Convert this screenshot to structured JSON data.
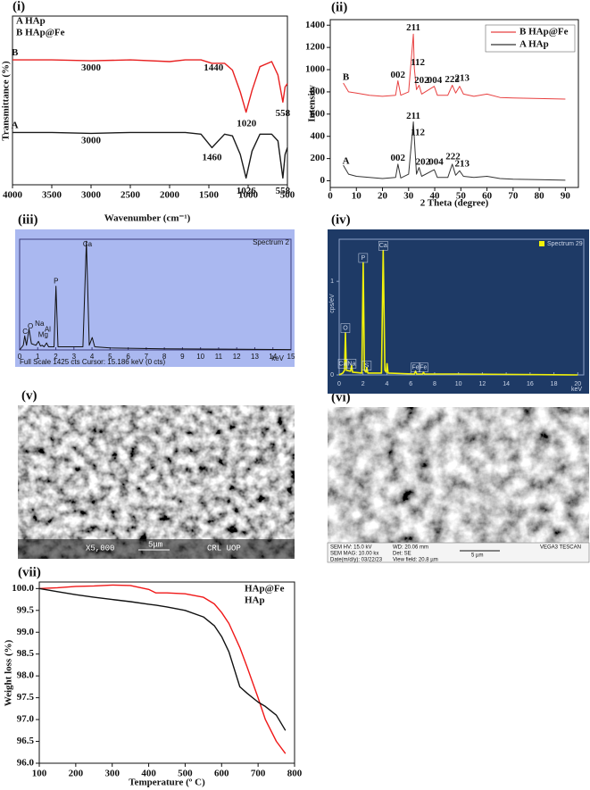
{
  "chart_data": [
    {
      "type": "line",
      "panel_label": "(i)",
      "xlabel": "Wavenumber (cm⁻¹)",
      "ylabel": "Transmittance (%)",
      "xlim": [
        4000,
        500
      ],
      "ylim": [
        0,
        100
      ],
      "xticks": [
        4000,
        3500,
        3000,
        2500,
        2000,
        1500,
        1000,
        500
      ],
      "legend": "upper left",
      "x": [
        4000,
        3500,
        3000,
        2500,
        2000,
        1800,
        1600,
        1460,
        1300,
        1200,
        1100,
        1026,
        950,
        850,
        700,
        620,
        558,
        530,
        500
      ],
      "series": [
        {
          "name": "A HAp",
          "color": "#1a1a1a",
          "values": [
            31,
            31,
            30.5,
            31,
            31,
            31,
            30,
            22,
            30,
            29,
            18,
            4,
            20,
            30,
            30,
            26,
            4,
            18,
            22
          ]
        },
        {
          "name": "B HAp@Fe",
          "color": "#e82020",
          "values": [
            74,
            74,
            73.5,
            74,
            73,
            74,
            74,
            72,
            72,
            68,
            55,
            43,
            56,
            70,
            73,
            65,
            49,
            58,
            60
          ]
        }
      ],
      "annotations": [
        {
          "text": "B",
          "x": 3970,
          "y": 78,
          "color": "#e82020"
        },
        {
          "text": "3000",
          "x": 3000,
          "y": 69
        },
        {
          "text": "1440",
          "x": 1440,
          "y": 69
        },
        {
          "text": "1020",
          "x": 1020,
          "y": 36
        },
        {
          "text": "558",
          "x": 558,
          "y": 42
        },
        {
          "text": "A",
          "x": 3970,
          "y": 35
        },
        {
          "text": "3000",
          "x": 3000,
          "y": 26
        },
        {
          "text": "1460",
          "x": 1460,
          "y": 16
        },
        {
          "text": "1026",
          "x": 1026,
          "y": -4
        },
        {
          "text": "558",
          "x": 558,
          "y": -4
        }
      ]
    },
    {
      "type": "line",
      "panel_label": "(ii)",
      "xlabel": "2 Theta (degree)",
      "ylabel": "Intensity",
      "xlim": [
        0,
        95
      ],
      "ylim": [
        -60,
        1450
      ],
      "xticks": [
        0,
        10,
        20,
        30,
        40,
        50,
        60,
        70,
        80,
        90
      ],
      "yticks": [
        0,
        200,
        400,
        600,
        800,
        1000,
        1200,
        1400
      ],
      "legend": "upper right",
      "x": [
        5,
        7,
        10,
        15,
        20,
        25,
        25.9,
        27,
        30,
        31.8,
        32.2,
        33,
        34,
        35,
        39.8,
        41,
        45,
        46.7,
        48,
        49.5,
        51,
        55,
        60,
        65,
        70,
        80,
        90
      ],
      "series": [
        {
          "name": "B HAp@Fe",
          "color": "#e84040",
          "values": [
            880,
            800,
            790,
            770,
            760,
            770,
            900,
            770,
            800,
            1320,
            1010,
            820,
            860,
            780,
            850,
            770,
            770,
            860,
            790,
            850,
            780,
            760,
            780,
            750,
            745,
            740,
            735
          ]
        },
        {
          "name": "A HAp",
          "color": "#333333",
          "values": [
            140,
            60,
            40,
            30,
            20,
            30,
            150,
            25,
            60,
            530,
            380,
            60,
            120,
            40,
            100,
            30,
            30,
            150,
            50,
            90,
            40,
            30,
            40,
            20,
            15,
            10,
            5
          ]
        }
      ],
      "annotations": [
        {
          "text": "B",
          "x": 6,
          "y": 930,
          "color": "#e84040"
        },
        {
          "text": "211",
          "x": 31.8,
          "y": 1375
        },
        {
          "text": "112",
          "x": 33.5,
          "y": 1060
        },
        {
          "text": "002",
          "x": 25.9,
          "y": 950
        },
        {
          "text": "202",
          "x": 35,
          "y": 900
        },
        {
          "text": "004",
          "x": 40,
          "y": 900
        },
        {
          "text": "222",
          "x": 46.7,
          "y": 910
        },
        {
          "text": "213",
          "x": 50.5,
          "y": 920
        },
        {
          "text": "A",
          "x": 6,
          "y": 175
        },
        {
          "text": "211",
          "x": 31.8,
          "y": 580
        },
        {
          "text": "112",
          "x": 33.5,
          "y": 430
        },
        {
          "text": "002",
          "x": 25.9,
          "y": 200
        },
        {
          "text": "202",
          "x": 35.5,
          "y": 165
        },
        {
          "text": "004",
          "x": 40.5,
          "y": 165
        },
        {
          "text": "222",
          "x": 47,
          "y": 215
        },
        {
          "text": "213",
          "x": 50.5,
          "y": 150
        }
      ]
    },
    {
      "type": "line",
      "panel_label": "(iii)",
      "xlim": [
        0,
        15
      ],
      "ylim": [
        0,
        1425
      ],
      "xticks": [
        0,
        1,
        2,
        3,
        4,
        5,
        6,
        7,
        8,
        9,
        10,
        11,
        12,
        13,
        14,
        15
      ],
      "x_unit": "keV",
      "footer": "Full Scale 1425 cts  Cursor: 15.186 keV (0 cts)",
      "legend": "upper right",
      "x": [
        0,
        0.2,
        0.28,
        0.38,
        0.52,
        0.65,
        0.9,
        1.04,
        1.15,
        1.25,
        1.35,
        1.49,
        1.6,
        1.9,
        2.01,
        2.12,
        3.5,
        3.69,
        3.85,
        4.01,
        4.15,
        5,
        8,
        15
      ],
      "series": [
        {
          "name": "Spectrum 2",
          "color": "#111111",
          "values": [
            0,
            60,
            180,
            60,
            270,
            80,
            60,
            110,
            50,
            60,
            40,
            90,
            40,
            40,
            820,
            40,
            40,
            1400,
            60,
            160,
            40,
            25,
            15,
            5
          ]
        }
      ],
      "annotations": [
        {
          "text": "C",
          "x": 0.3,
          "y": 230
        },
        {
          "text": "O",
          "x": 0.6,
          "y": 300
        },
        {
          "text": "Na",
          "x": 1.1,
          "y": 335
        },
        {
          "text": "Al",
          "x": 1.55,
          "y": 260
        },
        {
          "text": "Mg",
          "x": 1.3,
          "y": 190
        },
        {
          "text": "P",
          "x": 2.01,
          "y": 880
        },
        {
          "text": "Ca",
          "x": 3.75,
          "y": 1360
        }
      ]
    },
    {
      "type": "line",
      "panel_label": "(iv)",
      "xlim": [
        0,
        20.5
      ],
      "ylim": [
        0,
        1.45
      ],
      "ylabel": "cps/eV",
      "xticks": [
        0,
        2,
        4,
        6,
        8,
        10,
        12,
        14,
        16,
        18,
        20
      ],
      "yticks": [
        0,
        1
      ],
      "x_unit": "keV",
      "legend": "upper right",
      "x": [
        0,
        0.3,
        0.45,
        0.52,
        0.6,
        0.95,
        1.04,
        1.12,
        1.9,
        2.01,
        2.12,
        2.25,
        2.31,
        2.4,
        3.55,
        3.69,
        3.83,
        3.95,
        4.01,
        4.1,
        6.3,
        6.4,
        6.5,
        7.0,
        7.06,
        7.15,
        10,
        20
      ],
      "series": [
        {
          "name": "Spectrum 29",
          "color": "#f2f20a",
          "values": [
            0,
            0.02,
            0.05,
            0.45,
            0.05,
            0.04,
            0.1,
            0.03,
            0.02,
            1.2,
            0.05,
            0.03,
            0.08,
            0.02,
            0.02,
            1.33,
            0.05,
            0.03,
            0.12,
            0.02,
            0.01,
            0.04,
            0.01,
            0.01,
            0.03,
            0.01,
            0.01,
            0
          ]
        }
      ],
      "annotations": [
        {
          "text": "O",
          "x": 0.52,
          "y": 0.5
        },
        {
          "text": "Ca",
          "x": 0.3,
          "y": 0.12
        },
        {
          "text": "Na",
          "x": 1.04,
          "y": 0.12
        },
        {
          "text": "P",
          "x": 2.01,
          "y": 1.25
        },
        {
          "text": "S",
          "x": 2.31,
          "y": 0.1
        },
        {
          "text": "Ca",
          "x": 3.69,
          "y": 1.38
        },
        {
          "text": "Fe",
          "x": 6.4,
          "y": 0.08
        },
        {
          "text": "Fe",
          "x": 7.06,
          "y": 0.08
        }
      ]
    },
    {
      "type": "line",
      "panel_label": "(vii)",
      "xlabel": "Temperature (º C)",
      "ylabel": "Weight loss (%)",
      "xlim": [
        100,
        800
      ],
      "ylim": [
        96.0,
        100.15
      ],
      "xticks": [
        100,
        200,
        300,
        400,
        500,
        600,
        700,
        800
      ],
      "yticks": [
        {
          "value": 96.0,
          "label": "96.0"
        },
        {
          "value": 96.5,
          "label": "96.5"
        },
        {
          "value": 97.0,
          "label": "97.0"
        },
        {
          "value": 97.5,
          "label": "97.5"
        },
        {
          "value": 98.0,
          "label": "98.0"
        },
        {
          "value": 98.5,
          "label": "98.5"
        },
        {
          "value": 99.0,
          "label": "99.0"
        },
        {
          "value": 99.5,
          "label": "99.5"
        },
        {
          "value": 100.0,
          "label": "100.0"
        }
      ],
      "legend": "upper right",
      "x": [
        100,
        150,
        200,
        250,
        300,
        350,
        400,
        420,
        450,
        500,
        550,
        580,
        600,
        620,
        650,
        670,
        700,
        720,
        750,
        775
      ],
      "series": [
        {
          "name": "HAp@Fe",
          "color": "#f01818",
          "values": [
            100.0,
            100.02,
            100.05,
            100.06,
            100.08,
            100.07,
            99.98,
            99.9,
            99.9,
            99.88,
            99.8,
            99.65,
            99.45,
            99.2,
            98.65,
            98.2,
            97.5,
            97.0,
            96.5,
            96.22
          ]
        },
        {
          "name": "HAp",
          "color": "#111111",
          "values": [
            100.0,
            99.93,
            99.86,
            99.8,
            99.75,
            99.7,
            99.64,
            99.62,
            99.58,
            99.5,
            99.35,
            99.15,
            98.9,
            98.55,
            97.75,
            97.6,
            97.4,
            97.3,
            97.1,
            96.75
          ]
        }
      ]
    }
  ],
  "images": [
    {
      "panel_label": "(v)",
      "labels": [
        "X5,000",
        "5μm",
        "CRL UOP"
      ]
    },
    {
      "panel_label": "(vi)",
      "labels": [
        "SEM HV: 15.0 kV",
        "WD: 20.06 mm",
        "SEM MAG: 10.00 kx",
        "Det: SE",
        "5 µm",
        "Date(m/d/y): 03/22/23",
        "View field: 20.8 µm",
        "VEGA3 TESCAN"
      ]
    }
  ]
}
